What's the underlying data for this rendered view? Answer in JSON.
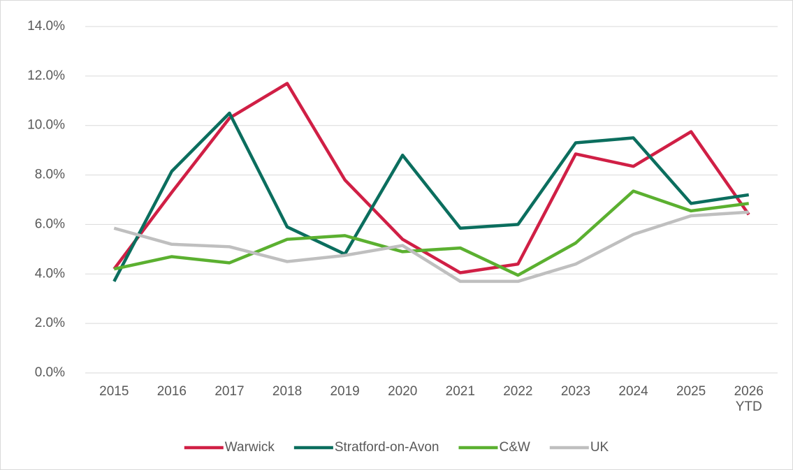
{
  "chart_data": {
    "type": "line",
    "categories": [
      "2015",
      "2016",
      "2017",
      "2018",
      "2019",
      "2020",
      "2021",
      "2022",
      "2023",
      "2024",
      "2025",
      "2026 YTD"
    ],
    "series": [
      {
        "name": "Warwick",
        "color": "#d01f45",
        "values": [
          4.2,
          7.3,
          10.3,
          11.7,
          7.8,
          5.4,
          4.05,
          4.4,
          8.85,
          8.35,
          9.75,
          6.4
        ]
      },
      {
        "name": "Stratford-on-Avon",
        "color": "#0b6e5e",
        "values": [
          3.7,
          8.15,
          10.5,
          5.9,
          4.8,
          8.8,
          5.85,
          6.0,
          9.3,
          9.5,
          6.85,
          7.2
        ]
      },
      {
        "name": "C&W",
        "color": "#5bb030",
        "values": [
          4.2,
          4.7,
          4.45,
          5.4,
          5.55,
          4.9,
          5.05,
          3.95,
          5.25,
          7.35,
          6.55,
          6.85
        ]
      },
      {
        "name": "UK",
        "color": "#bfbfbf",
        "values": [
          5.85,
          5.2,
          5.1,
          4.5,
          4.75,
          5.15,
          3.7,
          3.7,
          4.4,
          5.6,
          6.35,
          6.5
        ]
      }
    ],
    "ylim": [
      0,
      14
    ],
    "yticks": [
      {
        "value": 0,
        "label": "0.0%"
      },
      {
        "value": 2,
        "label": "2.0%"
      },
      {
        "value": 4,
        "label": "4.0%"
      },
      {
        "value": 6,
        "label": "6.0%"
      },
      {
        "value": 8,
        "label": "8.0%"
      },
      {
        "value": 10,
        "label": "10.0%"
      },
      {
        "value": 12,
        "label": "12.0%"
      },
      {
        "value": 14,
        "label": "14.0%"
      }
    ],
    "grid": true,
    "legend": "bottom"
  }
}
